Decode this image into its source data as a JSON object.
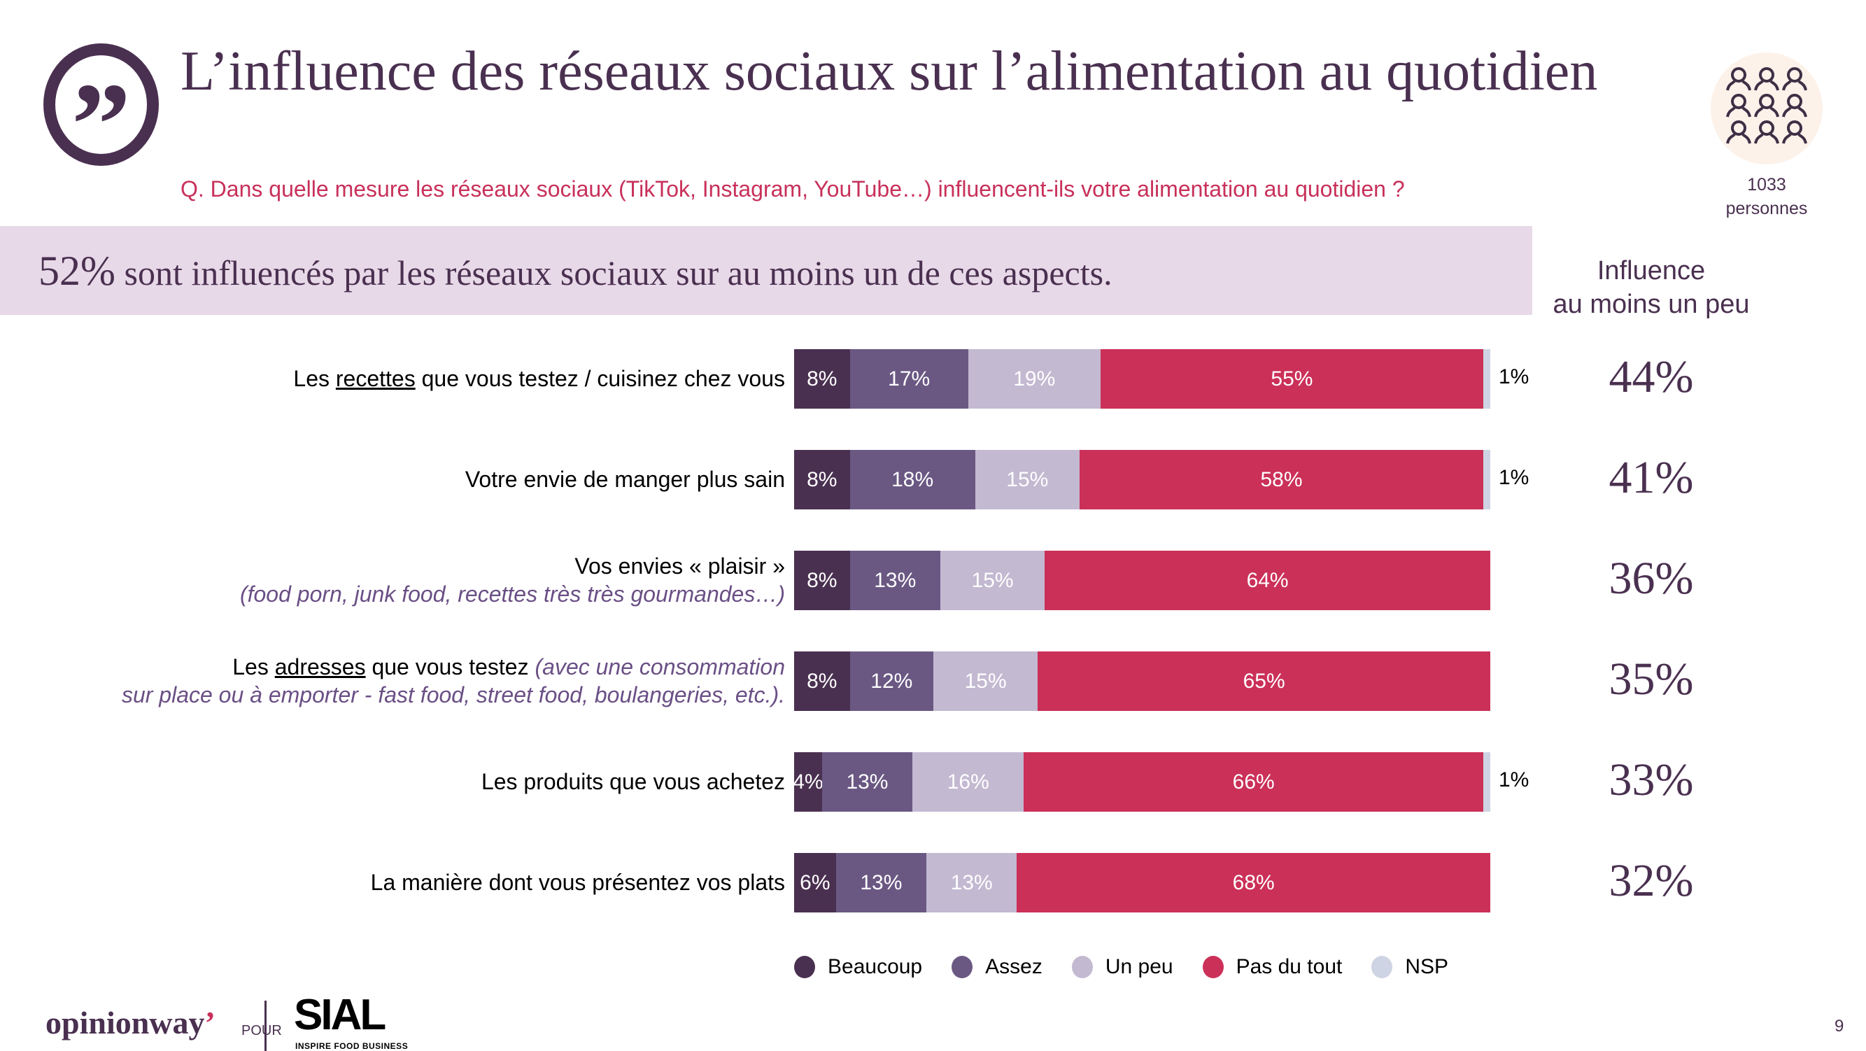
{
  "header": {
    "title": "L’influence des réseaux sociaux sur l’alimentation au quotidien",
    "question": "Q. Dans quelle mesure les réseaux sociaux (TikTok, Instagram, YouTube…) influencent-ils votre alimentation au quotidien ?",
    "quote_icon": "quote-icon",
    "sample": {
      "icon": "people-group-icon",
      "count": "1033",
      "unit": "personnes"
    }
  },
  "banner": {
    "highlight": "52%",
    "text": "sont influencés par les réseaux sociaux sur au moins un de ces aspects."
  },
  "summary_column": {
    "header_line1": "Influence",
    "header_line2": "au moins un peu"
  },
  "rows": [
    {
      "label_pre": "Les ",
      "label_underlined": "recettes",
      "label_post": " que vous testez / cuisinez chez vous",
      "note_inline": "",
      "note_line2": "",
      "summary": "44%"
    },
    {
      "label_pre": "Votre envie de manger plus sain",
      "label_underlined": "",
      "label_post": "",
      "note_inline": "",
      "note_line2": "",
      "summary": "41%"
    },
    {
      "label_pre": "Vos envies « plaisir »",
      "label_underlined": "",
      "label_post": "",
      "note_inline": "",
      "note_line2": "(food porn, junk food, recettes très très gourmandes…)",
      "summary": "36%"
    },
    {
      "label_pre": "Les ",
      "label_underlined": "adresses",
      "label_post": " que vous testez ",
      "note_inline": "(avec une consommation",
      "note_line2": "sur place ou à emporter - fast food, street food, boulangeries, etc.).",
      "summary": "35%"
    },
    {
      "label_pre": "Les produits que vous achetez",
      "label_underlined": "",
      "label_post": "",
      "note_inline": "",
      "note_line2": "",
      "summary": "33%"
    },
    {
      "label_pre": "La manière dont vous présentez vos plats",
      "label_underlined": "",
      "label_post": "",
      "note_inline": "",
      "note_line2": "",
      "summary": "32%"
    }
  ],
  "chart_data": {
    "type": "bar",
    "orientation": "horizontal",
    "stacked": true,
    "title": "L’influence des réseaux sociaux sur l’alimentation au quotidien",
    "xlabel": "",
    "ylabel": "",
    "xlim": [
      0,
      100
    ],
    "grid": false,
    "legend_position": "bottom",
    "categories": [
      "Les recettes que vous testez / cuisinez chez vous",
      "Votre envie de manger plus sain",
      "Vos envies « plaisir » (food porn, junk food, recettes très très gourmandes…)",
      "Les adresses que vous testez (avec une consommation sur place ou à emporter - fast food, street food, boulangeries, etc.).",
      "Les produits que vous achetez",
      "La manière dont vous présentez vos plats"
    ],
    "series": [
      {
        "name": "Beaucoup",
        "color": "#4a3050",
        "values": [
          8,
          8,
          8,
          8,
          4,
          6
        ]
      },
      {
        "name": "Assez",
        "color": "#6a5883",
        "values": [
          17,
          18,
          13,
          12,
          13,
          13
        ]
      },
      {
        "name": "Un peu",
        "color": "#c3b9d1",
        "values": [
          19,
          15,
          15,
          15,
          16,
          13
        ]
      },
      {
        "name": "Pas du tout",
        "color": "#cb3058",
        "values": [
          55,
          58,
          64,
          65,
          66,
          68
        ]
      },
      {
        "name": "NSP",
        "color": "#ced4e3",
        "values": [
          1,
          1,
          0,
          0,
          1,
          0
        ]
      }
    ],
    "summary_label": "Influence au moins un peu",
    "summary_values": [
      44,
      41,
      36,
      35,
      33,
      32
    ]
  },
  "footer": {
    "brand": "opinionway",
    "brand_apostrophe": "’",
    "pour": "POUR",
    "partner": "SIAL",
    "partner_tagline": "INSPIRE FOOD BUSINESS",
    "page_number": "9"
  }
}
